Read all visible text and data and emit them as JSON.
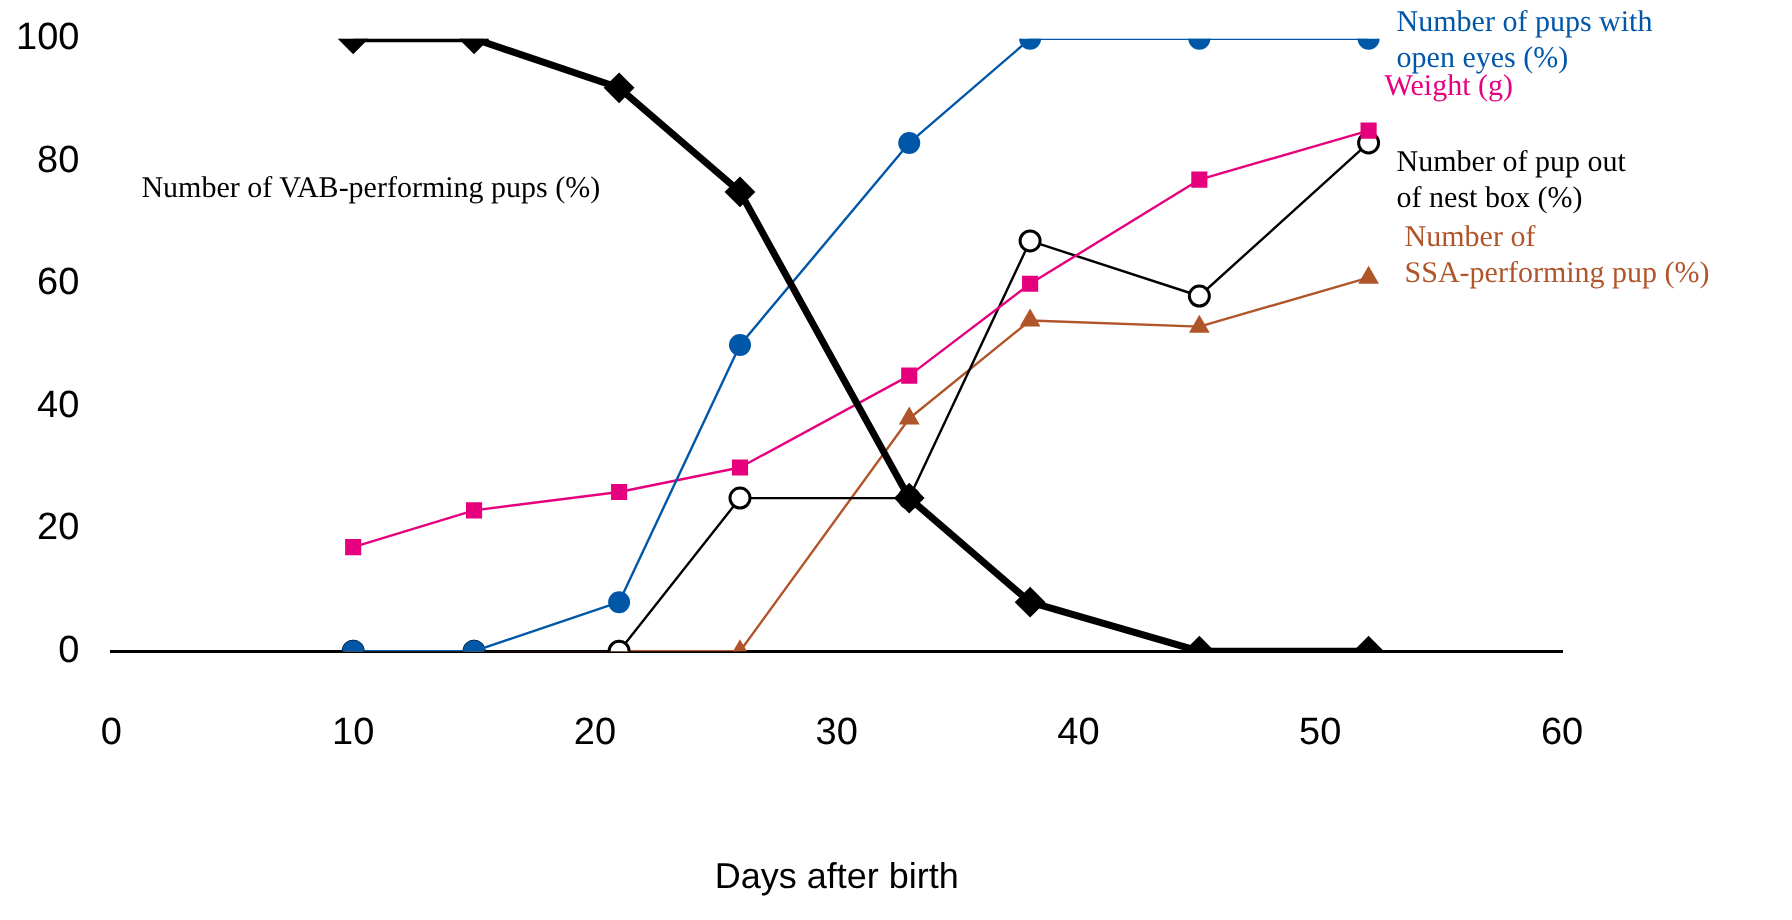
{
  "chart_data": {
    "type": "line",
    "xlabel": "Days after birth",
    "xlim": [
      0,
      60
    ],
    "xticks": [
      0,
      10,
      20,
      30,
      40,
      50,
      60
    ],
    "ylim": [
      0,
      100
    ],
    "yticks": [
      0,
      20,
      40,
      60,
      80,
      100
    ],
    "grid": false,
    "legend": false,
    "line_style": "solid",
    "series": [
      {
        "name": "Number of VAB-performing pups (%)",
        "color": "#000000",
        "marker": "diamond",
        "x": [
          10,
          15,
          21,
          26,
          33,
          38,
          45,
          52
        ],
        "values": [
          100,
          100,
          92,
          75,
          25,
          8,
          0,
          0
        ]
      },
      {
        "name": "Number of pups with open eyes (%)",
        "color": "#0057a8",
        "marker": "circle",
        "x": [
          10,
          15,
          21,
          26,
          33,
          38,
          45,
          52
        ],
        "values": [
          0,
          0,
          8,
          50,
          83,
          100,
          100,
          100
        ]
      },
      {
        "name": "Weight (g)",
        "color": "#e6007e",
        "marker": "square",
        "x": [
          10,
          15,
          21,
          26,
          33,
          38,
          45,
          52
        ],
        "values": [
          17,
          23,
          26,
          30,
          45,
          60,
          77,
          85
        ]
      },
      {
        "name": "Number of pup out of nest box (%)",
        "color": "#000000",
        "marker": "open circle",
        "x": [
          10,
          15,
          21,
          26,
          33,
          38,
          45,
          52
        ],
        "values": [
          0,
          0,
          0,
          25,
          25,
          67,
          58,
          83
        ]
      },
      {
        "name": "Number of SSA-performing pup (%)",
        "color": "#b0552a",
        "marker": "triangle",
        "x": [
          10,
          15,
          21,
          26,
          33,
          38,
          45,
          52
        ],
        "values": [
          0,
          0,
          0,
          0,
          38,
          54,
          53,
          61
        ]
      }
    ]
  }
}
